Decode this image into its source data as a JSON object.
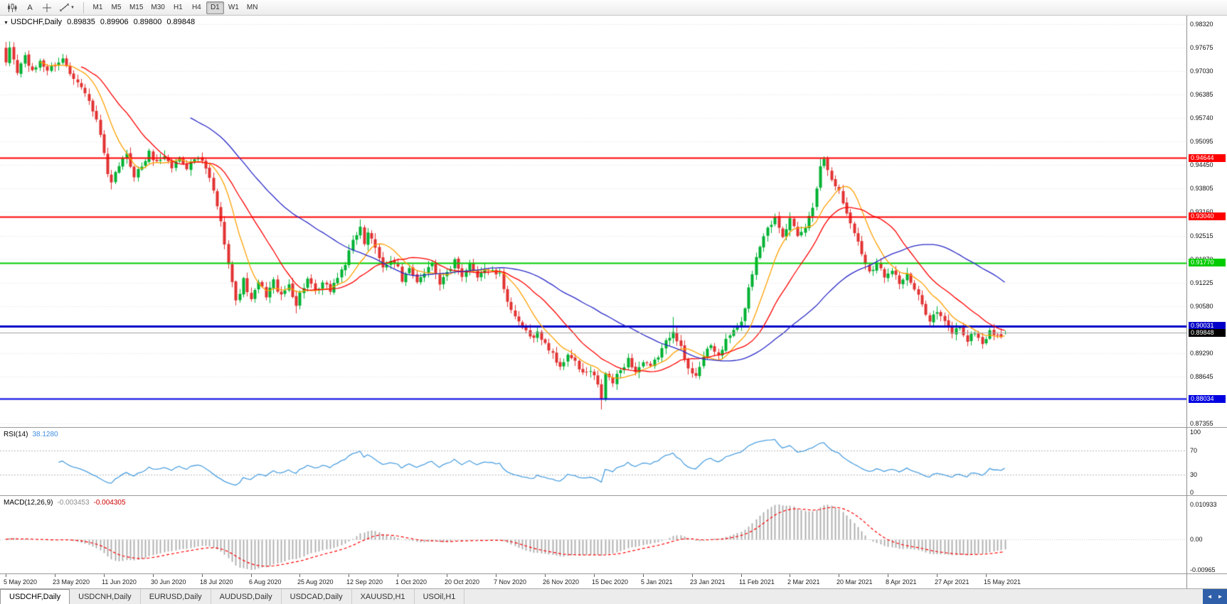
{
  "toolbar": {
    "cursor_label": "A",
    "timeframes": [
      "M1",
      "M5",
      "M15",
      "M30",
      "H1",
      "H4",
      "D1",
      "W1",
      "MN"
    ],
    "active_timeframe": "D1"
  },
  "quote": {
    "symbol": "USDCHF,Daily",
    "open": "0.89835",
    "high": "0.89906",
    "low": "0.89800",
    "close": "0.89848"
  },
  "chart_data": {
    "type": "candlestick",
    "symbol": "USDCHF",
    "timeframe": "Daily",
    "grid_color": "#e2e2e2",
    "y_axis": {
      "min": 0.87355,
      "max": 0.9832,
      "tick_step": 0.00645,
      "labels": [
        "0.98320",
        "0.97675",
        "0.97030",
        "0.96385",
        "0.95740",
        "0.95095",
        "0.94450",
        "0.93805",
        "0.93160",
        "0.92515",
        "0.91870",
        "0.91225",
        "0.90580",
        "0.89290",
        "0.88645",
        "0.87355"
      ]
    },
    "x_axis": {
      "candles_per_label": 13,
      "labels": [
        "5 May 2020",
        "23 May 2020",
        "11 Jun 2020",
        "30 Jun 2020",
        "18 Jul 2020",
        "6 Aug 2020",
        "25 Aug 2020",
        "12 Sep 2020",
        "1 Oct 2020",
        "20 Oct 2020",
        "7 Nov 2020",
        "26 Nov 2020",
        "15 Dec 2020",
        "5 Jan 2021",
        "23 Jan 2021",
        "11 Feb 2021",
        "2 Mar 2021",
        "20 Mar 2021",
        "8 Apr 2021",
        "27 Apr 2021",
        "15 May 2021"
      ]
    },
    "horizontal_lines": [
      {
        "value": 0.94644,
        "label": "0.94644",
        "color": "#ff0000",
        "width": 2
      },
      {
        "value": 0.9304,
        "label": "0.93040",
        "color": "#ff0000",
        "width": 2
      },
      {
        "value": 0.9177,
        "label": "0.91770",
        "color": "#00cc00",
        "width": 2
      },
      {
        "value": 0.90031,
        "label": "0.90031",
        "color": "#0000c8",
        "width": 3
      },
      {
        "value": 0.88034,
        "label": "0.88034",
        "color": "#0000e0",
        "width": 2
      }
    ],
    "current_price": {
      "value": 0.89848,
      "label": "0.89848",
      "badge_bg": "#000000",
      "line_color": "#a0a0a0"
    },
    "candles": {
      "count": 266,
      "up_color": "#00b232",
      "down_color": "#e23232",
      "last_ohlc": [
        0.89835,
        0.89906,
        0.898,
        0.89848
      ],
      "price_path": [
        [
          0,
          0.972
        ],
        [
          1,
          0.9768
        ],
        [
          3,
          0.97
        ],
        [
          5,
          0.9745
        ],
        [
          7,
          0.9698
        ],
        [
          9,
          0.9732
        ],
        [
          11,
          0.9705
        ],
        [
          13,
          0.9722
        ],
        [
          15,
          0.9736
        ],
        [
          17,
          0.97
        ],
        [
          19,
          0.9678
        ],
        [
          21,
          0.964
        ],
        [
          23,
          0.9598
        ],
        [
          25,
          0.9528
        ],
        [
          27,
          0.9415
        ],
        [
          28,
          0.9392
        ],
        [
          30,
          0.9445
        ],
        [
          32,
          0.9472
        ],
        [
          34,
          0.9418
        ],
        [
          36,
          0.9442
        ],
        [
          38,
          0.9478
        ],
        [
          40,
          0.9452
        ],
        [
          42,
          0.9472
        ],
        [
          44,
          0.9438
        ],
        [
          46,
          0.9468
        ],
        [
          48,
          0.944
        ],
        [
          50,
          0.9462
        ],
        [
          52,
          0.9455
        ],
        [
          54,
          0.9408
        ],
        [
          56,
          0.9335
        ],
        [
          58,
          0.9235
        ],
        [
          60,
          0.9125
        ],
        [
          61,
          0.9068
        ],
        [
          63,
          0.9128
        ],
        [
          65,
          0.9072
        ],
        [
          67,
          0.9122
        ],
        [
          69,
          0.9088
        ],
        [
          71,
          0.9126
        ],
        [
          73,
          0.9082
        ],
        [
          75,
          0.9118
        ],
        [
          77,
          0.9062
        ],
        [
          78,
          0.9092
        ],
        [
          80,
          0.9132
        ],
        [
          82,
          0.9092
        ],
        [
          84,
          0.9118
        ],
        [
          86,
          0.9102
        ],
        [
          88,
          0.9138
        ],
        [
          90,
          0.9175
        ],
        [
          92,
          0.9232
        ],
        [
          94,
          0.9278
        ],
        [
          95,
          0.9232
        ],
        [
          96,
          0.9262
        ],
        [
          98,
          0.9212
        ],
        [
          100,
          0.9162
        ],
        [
          102,
          0.9188
        ],
        [
          104,
          0.9165
        ],
        [
          105,
          0.9122
        ],
        [
          107,
          0.9158
        ],
        [
          109,
          0.9128
        ],
        [
          111,
          0.9152
        ],
        [
          113,
          0.9178
        ],
        [
          115,
          0.9122
        ],
        [
          117,
          0.9148
        ],
        [
          119,
          0.918
        ],
        [
          121,
          0.9132
        ],
        [
          123,
          0.9172
        ],
        [
          125,
          0.9142
        ],
        [
          127,
          0.9162
        ],
        [
          129,
          0.9152
        ],
        [
          131,
          0.9142
        ],
        [
          133,
          0.9075
        ],
        [
          135,
          0.9022
        ],
        [
          137,
          0.8998
        ],
        [
          139,
          0.8972
        ],
        [
          141,
          0.8985
        ],
        [
          143,
          0.8952
        ],
        [
          145,
          0.893
        ],
        [
          147,
          0.8885
        ],
        [
          149,
          0.8928
        ],
        [
          151,
          0.8902
        ],
        [
          153,
          0.8872
        ],
        [
          155,
          0.8878
        ],
        [
          156,
          0.8862
        ],
        [
          157,
          0.8838
        ],
        [
          158,
          0.8805
        ],
        [
          159,
          0.8872
        ],
        [
          161,
          0.8848
        ],
        [
          163,
          0.8882
        ],
        [
          165,
          0.8912
        ],
        [
          167,
          0.8878
        ],
        [
          169,
          0.8902
        ],
        [
          171,
          0.8888
        ],
        [
          173,
          0.8922
        ],
        [
          175,
          0.8958
        ],
        [
          177,
          0.8995
        ],
        [
          179,
          0.8942
        ],
        [
          181,
          0.8882
        ],
        [
          183,
          0.8872
        ],
        [
          185,
          0.8918
        ],
        [
          187,
          0.8948
        ],
        [
          189,
          0.8922
        ],
        [
          191,
          0.8962
        ],
        [
          193,
          0.8992
        ],
        [
          195,
          0.901
        ],
        [
          197,
          0.9105
        ],
        [
          199,
          0.9195
        ],
        [
          201,
          0.9255
        ],
        [
          203,
          0.9285
        ],
        [
          204,
          0.9305
        ],
        [
          206,
          0.9255
        ],
        [
          208,
          0.9295
        ],
        [
          210,
          0.9245
        ],
        [
          212,
          0.9275
        ],
        [
          214,
          0.933
        ],
        [
          216,
          0.9445
        ],
        [
          217,
          0.946
        ],
        [
          219,
          0.9412
        ],
        [
          221,
          0.9372
        ],
        [
          223,
          0.9312
        ],
        [
          225,
          0.9262
        ],
        [
          227,
          0.9202
        ],
        [
          229,
          0.9155
        ],
        [
          231,
          0.9175
        ],
        [
          233,
          0.9142
        ],
        [
          235,
          0.9162
        ],
        [
          237,
          0.9122
        ],
        [
          239,
          0.9142
        ],
        [
          241,
          0.9102
        ],
        [
          243,
          0.9062
        ],
        [
          245,
          0.9022
        ],
        [
          247,
          0.9042
        ],
        [
          249,
          0.9012
        ],
        [
          251,
          0.8985
        ],
        [
          253,
          0.9002
        ],
        [
          255,
          0.8962
        ],
        [
          257,
          0.8988
        ],
        [
          259,
          0.8952
        ],
        [
          261,
          0.8992
        ],
        [
          263,
          0.8972
        ],
        [
          265,
          0.89848
        ]
      ],
      "spikes": [
        {
          "i": 1,
          "high": 0.9779
        },
        {
          "i": 28,
          "low": 0.9378
        },
        {
          "i": 77,
          "low": 0.9038
        },
        {
          "i": 94,
          "high": 0.9296
        },
        {
          "i": 158,
          "low": 0.8774
        },
        {
          "i": 177,
          "high": 0.9028
        },
        {
          "i": 216,
          "high": 0.9464
        },
        {
          "i": 259,
          "low": 0.8941
        }
      ]
    },
    "moving_averages": [
      {
        "name": "fast",
        "type": "sma",
        "period": 10,
        "color": "#ffa000"
      },
      {
        "name": "mid",
        "type": "sma",
        "period": 21,
        "color": "#ff0000"
      },
      {
        "name": "slow",
        "type": "sma",
        "period": 50,
        "color": "#2a2ac8"
      }
    ],
    "rsi": {
      "label": "RSI(14)",
      "value_label": "38.1280",
      "period": 14,
      "levels": [
        70,
        30
      ],
      "axis_labels": [
        "100",
        "70",
        "30",
        "0"
      ],
      "color": "#4da0e0"
    },
    "macd": {
      "label": "MACD(12,26,9)",
      "macd_label": "-0.003453",
      "signal_label": "-0.004305",
      "fast": 12,
      "slow": 26,
      "signal": 9,
      "axis_max": 0.010933,
      "axis_min": -0.00965,
      "axis_labels": [
        "0.010933",
        "0.00",
        "-0.00965"
      ],
      "hist_color": "#ababab",
      "signal_color": "#ff0000"
    }
  },
  "tabs": {
    "items": [
      "USDCHF,Daily",
      "USDCNH,Daily",
      "EURUSD,Daily",
      "AUDUSD,Daily",
      "USDCAD,Daily",
      "XAUUSD,H1",
      "USOil,H1"
    ],
    "active": "USDCHF,Daily"
  }
}
